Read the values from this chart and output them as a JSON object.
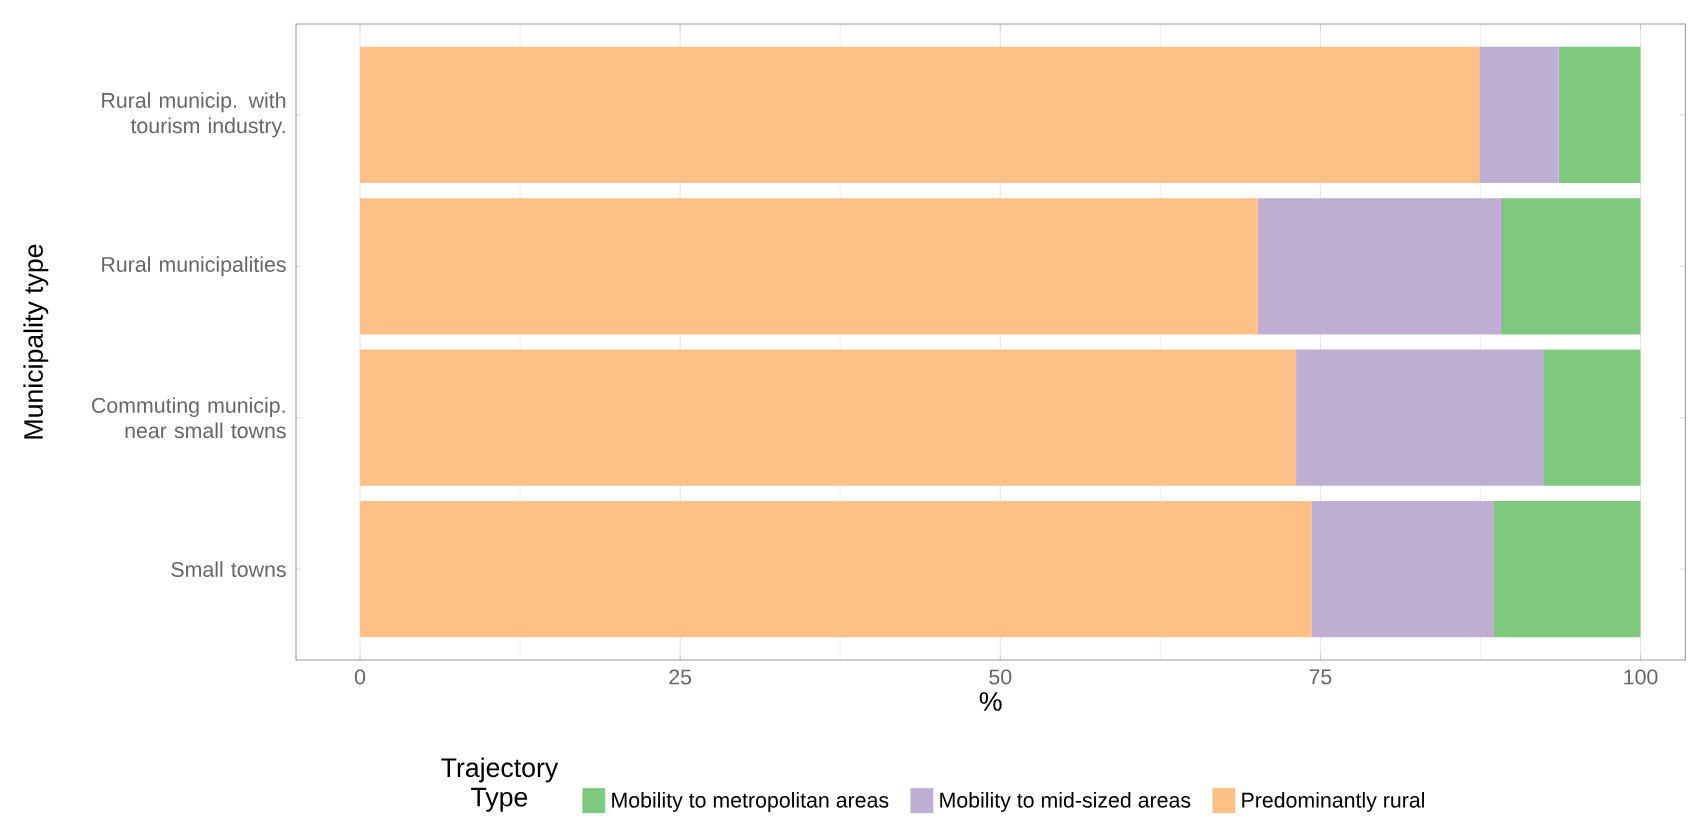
{
  "chart_data": {
    "type": "bar",
    "orientation": "horizontal",
    "stacked": true,
    "categories": [
      "Rural municip. with tourism industry.",
      "Rural municipalities",
      "Commuting municip. near small towns",
      "Small towns"
    ],
    "series": [
      {
        "name": "Predominantly rural",
        "color": "#fdc086",
        "values": [
          87.4,
          70.1,
          73.1,
          74.3
        ]
      },
      {
        "name": "Mobility to mid-sized areas",
        "color": "#beaed4",
        "values": [
          6.2,
          19.0,
          19.3,
          14.2
        ]
      },
      {
        "name": "Mobility to metropolitan areas",
        "color": "#7fc97f",
        "values": [
          6.4,
          10.9,
          7.6,
          11.5
        ]
      }
    ],
    "xlim": [
      -5,
      103.5
    ],
    "xticks": [
      0,
      25,
      50,
      75,
      100
    ],
    "xlabel": "%",
    "ylabel": "Municipality type",
    "legend_title": "Trajectory Type",
    "legend": "bottom",
    "grid": "x"
  }
}
